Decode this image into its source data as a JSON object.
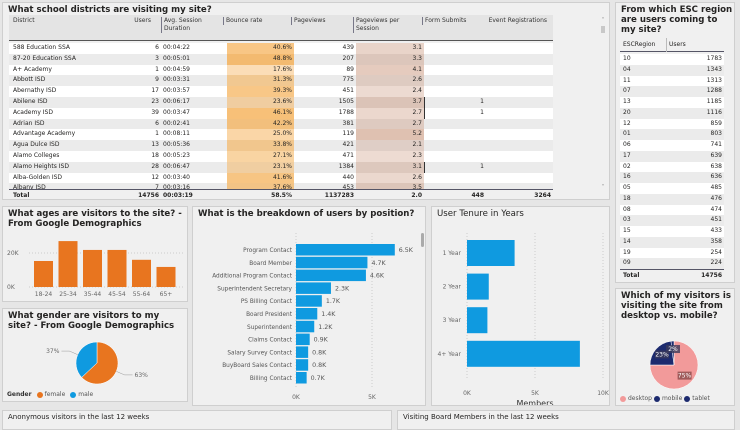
{
  "districts": {
    "title": "What school districts are visiting my site?",
    "columns": [
      "District",
      "Users",
      "Avg. Session Duration",
      "Bounce rate",
      "Pageviews",
      "Pageviews per Session",
      "Form Submits",
      "Event Registrations"
    ],
    "rows": [
      [
        "588 Education SSA",
        "6",
        "00:04:22",
        "40.6%",
        "439",
        "3.1",
        "",
        ""
      ],
      [
        "87-20 Education SSA",
        "3",
        "00:05:01",
        "48.8%",
        "207",
        "3.3",
        "",
        ""
      ],
      [
        "A+ Academy",
        "1",
        "00:04:59",
        "17.6%",
        "89",
        "4.1",
        "",
        ""
      ],
      [
        "Abbott ISD",
        "9",
        "00:03:31",
        "31.3%",
        "775",
        "2.6",
        "",
        ""
      ],
      [
        "Abernathy ISD",
        "17",
        "00:03:57",
        "39.3%",
        "451",
        "2.4",
        "",
        ""
      ],
      [
        "Abilene ISD",
        "23",
        "00:06:17",
        "23.6%",
        "1505",
        "3.7",
        "1",
        ""
      ],
      [
        "Academy ISD",
        "39",
        "00:03:47",
        "46.1%",
        "1788",
        "2.7",
        "1",
        ""
      ],
      [
        "Adrian ISD",
        "6",
        "00:02:41",
        "42.2%",
        "381",
        "2.7",
        "",
        ""
      ],
      [
        "Advantage Academy",
        "1",
        "00:08:11",
        "25.0%",
        "119",
        "5.2",
        "",
        ""
      ],
      [
        "Agua Dulce ISD",
        "13",
        "00:05:36",
        "33.8%",
        "421",
        "2.1",
        "",
        ""
      ],
      [
        "Alamo Colleges",
        "18",
        "00:05:23",
        "27.1%",
        "471",
        "2.3",
        "",
        ""
      ],
      [
        "Alamo Heights ISD",
        "28",
        "00:06:47",
        "23.1%",
        "1384",
        "3.1",
        "1",
        ""
      ],
      [
        "Alba-Golden ISD",
        "12",
        "00:03:40",
        "41.6%",
        "440",
        "2.6",
        "",
        ""
      ],
      [
        "Albany ISD",
        "7",
        "00:03:16",
        "37.6%",
        "453",
        "3.5",
        "",
        ""
      ]
    ],
    "total": {
      "label": "Total",
      "users": "14756",
      "avg": "00:03:19",
      "bounce": "58.5%",
      "pageviews": "1137283",
      "pps": "2.0",
      "forms": "448",
      "events": "3264"
    },
    "bounce_color": "#f5b25a",
    "pps_color": "#c9957a"
  },
  "esc": {
    "title": "From which ESC region are users coming to my site?",
    "columns": [
      "ESCRegion",
      "Users"
    ],
    "rows": [
      [
        "10",
        "1783"
      ],
      [
        "04",
        "1343"
      ],
      [
        "11",
        "1313"
      ],
      [
        "07",
        "1288"
      ],
      [
        "13",
        "1185"
      ],
      [
        "20",
        "1116"
      ],
      [
        "12",
        "859"
      ],
      [
        "01",
        "803"
      ],
      [
        "06",
        "741"
      ],
      [
        "17",
        "639"
      ],
      [
        "02",
        "638"
      ],
      [
        "16",
        "636"
      ],
      [
        "05",
        "485"
      ],
      [
        "18",
        "476"
      ],
      [
        "08",
        "474"
      ],
      [
        "03",
        "451"
      ],
      [
        "15",
        "433"
      ],
      [
        "14",
        "358"
      ],
      [
        "19",
        "254"
      ],
      [
        "09",
        "224"
      ]
    ],
    "total": {
      "label": "Total",
      "value": "14756"
    }
  },
  "chart_data": [
    {
      "type": "bar",
      "title": "What ages are visitors to the site? - From Google Demographics",
      "categories": [
        "18-24",
        "25-34",
        "35-44",
        "45-54",
        "55-64",
        "65+"
      ],
      "values": [
        15300,
        27000,
        21800,
        21800,
        16000,
        11800
      ],
      "yticks": [
        "0K",
        "20K"
      ],
      "ylim": [
        0,
        30000
      ],
      "grid": true,
      "color": "#e8751f"
    },
    {
      "type": "pie",
      "title": "What gender are visitors to my site? - From Google Demographics",
      "legend_title": "Gender",
      "slices": [
        {
          "name": "female",
          "value": 63,
          "label": "63%",
          "color": "#e8751f"
        },
        {
          "name": "male",
          "value": 37,
          "label": "37%",
          "color": "#0f9ae0"
        }
      ],
      "legend": "bottom-left"
    },
    {
      "type": "bar",
      "orientation": "horizontal",
      "title": "What is the breakdown of users by position?",
      "categories": [
        "Program Contact",
        "Board Member",
        "Additional Program Contact",
        "Superintendent Secretary",
        "PS Billing Contact",
        "Board President",
        "Superintendent",
        "Claims Contact",
        "Salary Survey Contact",
        "BuyBoard Sales Contact",
        "Billing Contact"
      ],
      "values": [
        6500,
        4700,
        4600,
        2300,
        1700,
        1400,
        1200,
        900,
        800,
        800,
        700
      ],
      "labels": [
        "6.5K",
        "4.7K",
        "4.6K",
        "2.3K",
        "1.7K",
        "1.4K",
        "1.2K",
        "0.9K",
        "0.8K",
        "0.8K",
        "0.7K"
      ],
      "xticks": [
        "0K",
        "5K"
      ],
      "xlim": [
        0,
        8000
      ],
      "color": "#0f9ae0"
    },
    {
      "type": "bar",
      "orientation": "horizontal",
      "title": "User Tenure in Years",
      "categories": [
        "1 Year",
        "2 Year",
        "3 Year",
        "4+ Year"
      ],
      "values": [
        3500,
        1600,
        1500,
        8300
      ],
      "xticks": [
        "0K",
        "5K",
        "10K"
      ],
      "xlim": [
        0,
        10000
      ],
      "xlabel": "Members",
      "grid": true,
      "color": "#0f9ae0"
    },
    {
      "type": "pie",
      "title": "Which of my visitors is visiting the site from desktop vs. mobile?",
      "slices": [
        {
          "name": "desktop",
          "value": 75,
          "label": "75%",
          "color": "#f29a9a"
        },
        {
          "name": "mobile",
          "value": 23,
          "label": "23%",
          "color": "#1c2a6e"
        },
        {
          "name": "tablet",
          "value": 2,
          "label": "2%",
          "color": "#1c2a6e"
        }
      ],
      "legend": "bottom"
    }
  ],
  "bottom": {
    "anon_title": "Anonymous visitors in the last 12 weeks",
    "board_title": "Visiting Board Members in the last 12 weeks"
  }
}
